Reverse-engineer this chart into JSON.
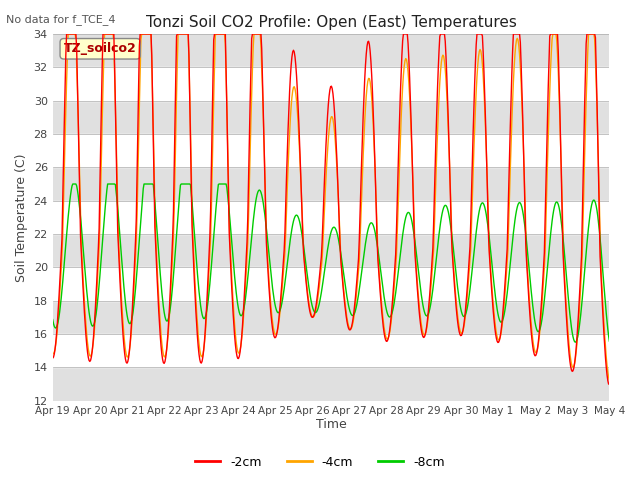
{
  "title": "Tonzi Soil CO2 Profile: Open (East) Temperatures",
  "ylabel": "Soil Temperature (C)",
  "xlabel": "Time",
  "annotation": "No data for f_TCE_4",
  "legend_box_label": "TZ_soilco2",
  "ylim": [
    12,
    34
  ],
  "yticks": [
    12,
    14,
    16,
    18,
    20,
    22,
    24,
    26,
    28,
    30,
    32,
    34
  ],
  "line_colors": {
    "m2cm": "#ff0000",
    "m4cm": "#ffa500",
    "m8cm": "#00cc00"
  },
  "line_labels": [
    "-2cm",
    "-4cm",
    "-8cm"
  ],
  "plot_bg": "#e8e8e8",
  "tick_labels": [
    "Apr 19",
    "Apr 20",
    "Apr 21",
    "Apr 22",
    "Apr 23",
    "Apr 24",
    "Apr 25",
    "Apr 26",
    "Apr 27",
    "Apr 28",
    "Apr 29",
    "Apr 30",
    "May 1",
    "May 2",
    "May 3",
    "May 4"
  ]
}
